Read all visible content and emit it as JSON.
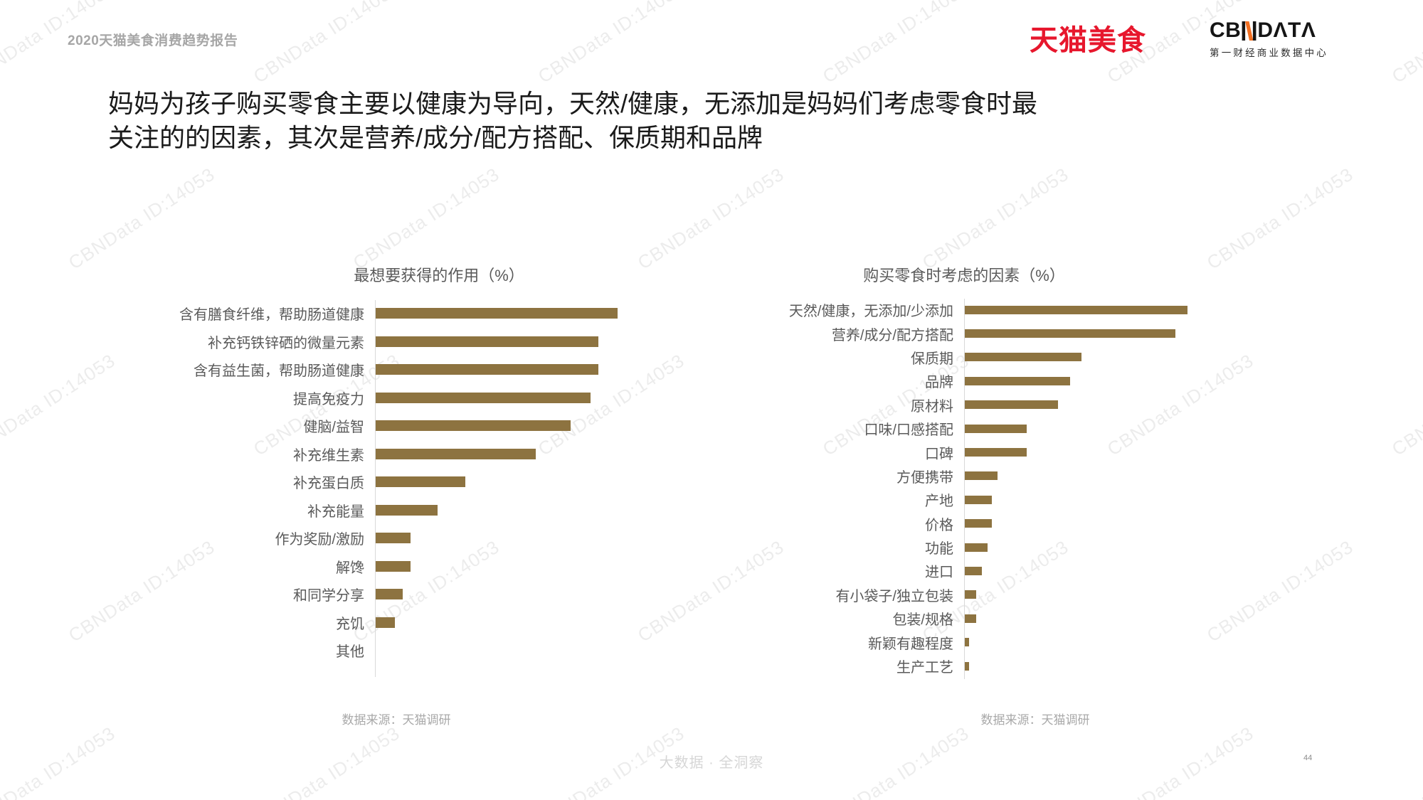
{
  "page": {
    "header_label": "2020天猫美食消费趋势报告",
    "title_line1": "妈妈为孩子购买零食主要以健康为导向，天然/健康，无添加是妈妈们考虑零食时最",
    "title_line2": "关注的的因素，其次是营养/成分/配方搭配、保质期和品牌",
    "footer": "大数据 · 全洞察",
    "page_number": "44",
    "watermark_text": "CBNData ID:14053"
  },
  "logos": {
    "tmall_food": "天猫美食",
    "cbn_prefix": "CB",
    "cbn_suffix": "DΛTΛ",
    "cbn_caption": "第一财经商业数据中心"
  },
  "colors": {
    "bar": "#8d7340",
    "axis": "#d9d9d9",
    "tmall_red": "#e7172d",
    "cbn_orange": "#f26f21"
  },
  "chart_data": [
    {
      "type": "bar",
      "orientation": "horizontal",
      "title": "最想要获得的作用（%）",
      "source": "数据来源：天猫调研",
      "grid": false,
      "value_labels_shown": false,
      "values_note": "no numeric labels in figure; values estimated from bar lengths, in %",
      "xlim": [
        0,
        70
      ],
      "categories": [
        "含有膳食纤维，帮助肠道健康",
        "补充钙铁锌硒的微量元素",
        "含有益生菌，帮助肠道健康",
        "提高免疫力",
        "健脑/益智",
        "补充维生素",
        "补充蛋白质",
        "补充能量",
        "作为奖励/激励",
        "解馋",
        "和同学分享",
        "充饥",
        "其他"
      ],
      "values": [
        62,
        57,
        57,
        55,
        50,
        41,
        23,
        16,
        9,
        9,
        7,
        5,
        0
      ]
    },
    {
      "type": "bar",
      "orientation": "horizontal",
      "title": "购买零食时考虑的因素（%）",
      "source": "数据来源：天猫调研",
      "grid": false,
      "value_labels_shown": false,
      "values_note": "no numeric labels in figure; values estimated from bar lengths, in %",
      "xlim": [
        0,
        70
      ],
      "categories": [
        "天然/健康，无添加/少添加",
        "营养/成分/配方搭配",
        "保质期",
        "品牌",
        "原材料",
        "口味/口感搭配",
        "口碑",
        "方便携带",
        "产地",
        "价格",
        "功能",
        "进口",
        "有小袋子/独立包装",
        "包装/规格",
        "新颖有趣程度",
        "生产工艺"
      ],
      "values": [
        57,
        54,
        30,
        27,
        24,
        16,
        16,
        8.5,
        7,
        7,
        6,
        4.5,
        3,
        3,
        1.3,
        1.3
      ]
    }
  ]
}
